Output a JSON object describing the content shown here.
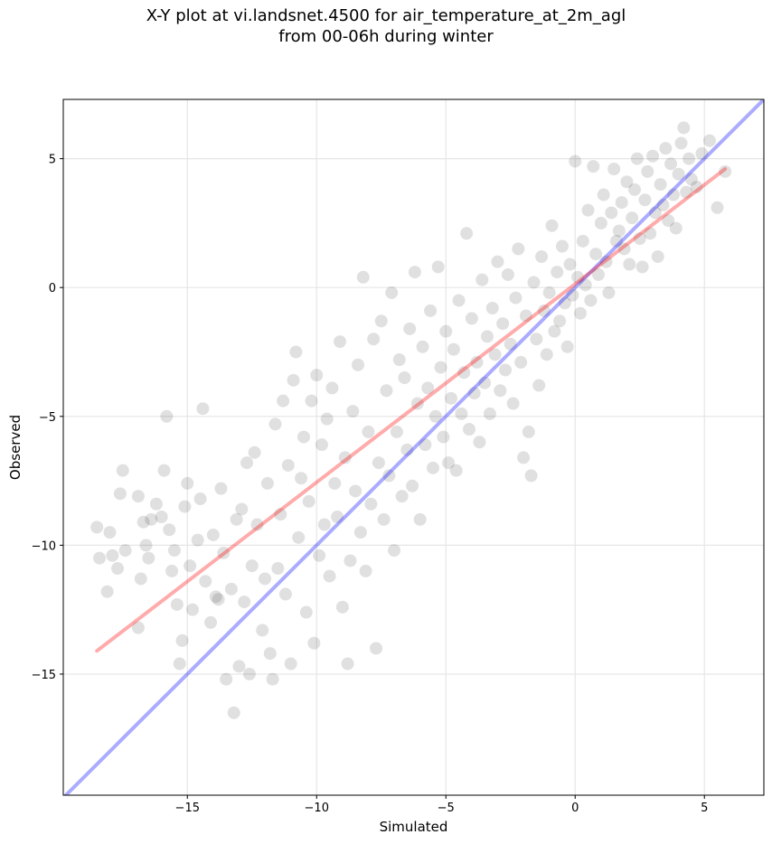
{
  "chart_data": {
    "type": "scatter",
    "title_lines": [
      "X-Y plot at vi.landsnet.4500 for air_temperature_at_2m_agl",
      "from 00-06h during winter"
    ],
    "xlabel": "Simulated",
    "ylabel": "Observed",
    "xlim": [
      -19.8,
      7.3
    ],
    "ylim": [
      -19.7,
      7.3
    ],
    "xticks": [
      -15,
      -10,
      -5,
      0,
      5
    ],
    "yticks": [
      -15,
      -10,
      -5,
      0,
      5
    ],
    "xtick_labels": [
      "−15",
      "−10",
      "−5",
      "0",
      "5"
    ],
    "ytick_labels": [
      "−15",
      "−10",
      "−5",
      "0",
      "5"
    ],
    "grid": true,
    "point_color": "#000000",
    "points": [
      [
        -18.5,
        -9.3
      ],
      [
        -18.4,
        -10.5
      ],
      [
        -18.1,
        -11.8
      ],
      [
        -18.0,
        -9.5
      ],
      [
        -17.9,
        -10.4
      ],
      [
        -17.7,
        -10.9
      ],
      [
        -17.6,
        -8.0
      ],
      [
        -17.5,
        -7.1
      ],
      [
        -17.4,
        -10.2
      ],
      [
        -16.9,
        -13.2
      ],
      [
        -16.9,
        -8.1
      ],
      [
        -16.8,
        -11.3
      ],
      [
        -16.7,
        -9.1
      ],
      [
        -16.6,
        -10.0
      ],
      [
        -16.5,
        -10.5
      ],
      [
        -16.4,
        -9.0
      ],
      [
        -16.2,
        -8.4
      ],
      [
        -16.0,
        -8.9
      ],
      [
        -15.9,
        -7.1
      ],
      [
        -15.8,
        -5.0
      ],
      [
        -15.7,
        -9.4
      ],
      [
        -15.6,
        -11.0
      ],
      [
        -15.5,
        -10.2
      ],
      [
        -15.4,
        -12.3
      ],
      [
        -15.3,
        -14.6
      ],
      [
        -15.2,
        -13.7
      ],
      [
        -15.1,
        -8.5
      ],
      [
        -15.0,
        -7.6
      ],
      [
        -14.9,
        -10.8
      ],
      [
        -14.8,
        -12.5
      ],
      [
        -14.6,
        -9.8
      ],
      [
        -14.5,
        -8.2
      ],
      [
        -14.4,
        -4.7
      ],
      [
        -14.3,
        -11.4
      ],
      [
        -14.1,
        -13.0
      ],
      [
        -14.0,
        -9.6
      ],
      [
        -13.9,
        -12.0
      ],
      [
        -13.8,
        -12.1
      ],
      [
        -13.7,
        -7.8
      ],
      [
        -13.6,
        -10.3
      ],
      [
        -13.5,
        -15.2
      ],
      [
        -13.3,
        -11.7
      ],
      [
        -13.2,
        -16.5
      ],
      [
        -13.1,
        -9.0
      ],
      [
        -13.0,
        -14.7
      ],
      [
        -12.9,
        -8.6
      ],
      [
        -12.8,
        -12.2
      ],
      [
        -12.7,
        -6.8
      ],
      [
        -12.6,
        -15.0
      ],
      [
        -12.5,
        -10.8
      ],
      [
        -12.4,
        -6.4
      ],
      [
        -12.3,
        -9.2
      ],
      [
        -12.1,
        -13.3
      ],
      [
        -12.0,
        -11.3
      ],
      [
        -11.9,
        -7.6
      ],
      [
        -11.8,
        -14.2
      ],
      [
        -11.7,
        -15.2
      ],
      [
        -11.6,
        -5.3
      ],
      [
        -11.5,
        -10.9
      ],
      [
        -11.4,
        -8.8
      ],
      [
        -11.3,
        -4.4
      ],
      [
        -11.2,
        -11.9
      ],
      [
        -11.1,
        -6.9
      ],
      [
        -11.0,
        -14.6
      ],
      [
        -10.9,
        -3.6
      ],
      [
        -10.8,
        -2.5
      ],
      [
        -10.7,
        -9.7
      ],
      [
        -10.6,
        -7.4
      ],
      [
        -10.5,
        -5.8
      ],
      [
        -10.4,
        -12.6
      ],
      [
        -10.3,
        -8.3
      ],
      [
        -10.2,
        -4.4
      ],
      [
        -10.1,
        -13.8
      ],
      [
        -10.0,
        -3.4
      ],
      [
        -9.9,
        -10.4
      ],
      [
        -9.8,
        -6.1
      ],
      [
        -9.7,
        -9.2
      ],
      [
        -9.6,
        -5.1
      ],
      [
        -9.5,
        -11.2
      ],
      [
        -9.4,
        -3.9
      ],
      [
        -9.3,
        -7.6
      ],
      [
        -9.2,
        -8.9
      ],
      [
        -9.1,
        -2.1
      ],
      [
        -9.0,
        -12.4
      ],
      [
        -8.9,
        -6.6
      ],
      [
        -8.8,
        -14.6
      ],
      [
        -8.7,
        -10.6
      ],
      [
        -8.6,
        -4.8
      ],
      [
        -8.5,
        -7.9
      ],
      [
        -8.4,
        -3.0
      ],
      [
        -8.3,
        -9.5
      ],
      [
        -8.2,
        0.4
      ],
      [
        -8.1,
        -11.0
      ],
      [
        -8.0,
        -5.6
      ],
      [
        -7.9,
        -8.4
      ],
      [
        -7.8,
        -2.0
      ],
      [
        -7.7,
        -14.0
      ],
      [
        -7.6,
        -6.8
      ],
      [
        -7.5,
        -1.3
      ],
      [
        -7.4,
        -9.0
      ],
      [
        -7.3,
        -4.0
      ],
      [
        -7.2,
        -7.3
      ],
      [
        -7.1,
        -0.2
      ],
      [
        -7.0,
        -10.2
      ],
      [
        -6.9,
        -5.6
      ],
      [
        -6.8,
        -2.8
      ],
      [
        -6.7,
        -8.1
      ],
      [
        -6.6,
        -3.5
      ],
      [
        -6.5,
        -6.3
      ],
      [
        -6.4,
        -1.6
      ],
      [
        -6.3,
        -7.7
      ],
      [
        -6.2,
        0.6
      ],
      [
        -6.1,
        -4.5
      ],
      [
        -6.0,
        -9.0
      ],
      [
        -5.9,
        -2.3
      ],
      [
        -5.8,
        -6.1
      ],
      [
        -5.7,
        -3.9
      ],
      [
        -5.6,
        -0.9
      ],
      [
        -5.5,
        -7.0
      ],
      [
        -5.4,
        -5.0
      ],
      [
        -5.3,
        0.8
      ],
      [
        -5.2,
        -3.1
      ],
      [
        -5.1,
        -5.8
      ],
      [
        -5.0,
        -1.7
      ],
      [
        -4.9,
        -6.8
      ],
      [
        -4.8,
        -4.3
      ],
      [
        -4.7,
        -2.4
      ],
      [
        -4.6,
        -7.1
      ],
      [
        -4.5,
        -0.5
      ],
      [
        -4.4,
        -4.9
      ],
      [
        -4.3,
        -3.3
      ],
      [
        -4.2,
        2.1
      ],
      [
        -4.1,
        -5.5
      ],
      [
        -4.0,
        -1.2
      ],
      [
        -3.9,
        -4.1
      ],
      [
        -3.8,
        -2.9
      ],
      [
        -3.7,
        -6.0
      ],
      [
        -3.6,
        0.3
      ],
      [
        -3.5,
        -3.7
      ],
      [
        -3.4,
        -1.9
      ],
      [
        -3.3,
        -4.9
      ],
      [
        -3.2,
        -0.8
      ],
      [
        -3.1,
        -2.6
      ],
      [
        -3.0,
        1.0
      ],
      [
        -2.9,
        -4.0
      ],
      [
        -2.8,
        -1.4
      ],
      [
        -2.7,
        -3.2
      ],
      [
        -2.6,
        0.5
      ],
      [
        -2.5,
        -2.2
      ],
      [
        -2.4,
        -4.5
      ],
      [
        -2.3,
        -0.4
      ],
      [
        -2.2,
        1.5
      ],
      [
        -2.1,
        -2.9
      ],
      [
        -2.0,
        -6.6
      ],
      [
        -1.9,
        -1.1
      ],
      [
        -1.8,
        -5.6
      ],
      [
        -1.7,
        -7.3
      ],
      [
        -1.6,
        0.2
      ],
      [
        -1.5,
        -2.0
      ],
      [
        -1.4,
        -3.8
      ],
      [
        -1.3,
        1.2
      ],
      [
        -1.2,
        -0.9
      ],
      [
        -1.1,
        -2.6
      ],
      [
        -1.0,
        -0.2
      ],
      [
        -0.9,
        2.4
      ],
      [
        -0.8,
        -1.7
      ],
      [
        -0.7,
        0.6
      ],
      [
        -0.6,
        -1.3
      ],
      [
        -0.5,
        1.6
      ],
      [
        -0.4,
        -0.6
      ],
      [
        -0.3,
        -2.3
      ],
      [
        -0.2,
        0.9
      ],
      [
        -0.1,
        -0.3
      ],
      [
        0.0,
        4.9
      ],
      [
        0.1,
        0.4
      ],
      [
        0.2,
        -1.0
      ],
      [
        0.3,
        1.8
      ],
      [
        0.4,
        0.1
      ],
      [
        0.5,
        3.0
      ],
      [
        0.6,
        -0.5
      ],
      [
        0.7,
        4.7
      ],
      [
        0.8,
        1.3
      ],
      [
        0.9,
        0.5
      ],
      [
        1.0,
        2.5
      ],
      [
        1.1,
        3.6
      ],
      [
        1.2,
        1.0
      ],
      [
        1.3,
        -0.2
      ],
      [
        1.4,
        2.9
      ],
      [
        1.5,
        4.6
      ],
      [
        1.6,
        1.8
      ],
      [
        1.7,
        2.2
      ],
      [
        1.8,
        3.3
      ],
      [
        1.9,
        1.5
      ],
      [
        2.0,
        4.1
      ],
      [
        2.1,
        0.9
      ],
      [
        2.2,
        2.7
      ],
      [
        2.3,
        3.8
      ],
      [
        2.4,
        5.0
      ],
      [
        2.5,
        1.9
      ],
      [
        2.6,
        0.8
      ],
      [
        2.7,
        3.4
      ],
      [
        2.8,
        4.5
      ],
      [
        2.9,
        2.1
      ],
      [
        3.0,
        5.1
      ],
      [
        3.1,
        2.9
      ],
      [
        3.2,
        1.2
      ],
      [
        3.3,
        4.0
      ],
      [
        3.4,
        3.2
      ],
      [
        3.5,
        5.4
      ],
      [
        3.6,
        2.6
      ],
      [
        3.7,
        4.8
      ],
      [
        3.8,
        3.6
      ],
      [
        3.9,
        2.3
      ],
      [
        4.0,
        4.4
      ],
      [
        4.1,
        5.6
      ],
      [
        4.2,
        6.2
      ],
      [
        4.3,
        3.7
      ],
      [
        4.4,
        5.0
      ],
      [
        4.5,
        4.2
      ],
      [
        4.7,
        3.9
      ],
      [
        4.9,
        5.2
      ],
      [
        5.2,
        5.7
      ],
      [
        5.5,
        3.1
      ],
      [
        5.8,
        4.5
      ]
    ],
    "lines": [
      {
        "color": "#0000ff",
        "x": [
          -19.8,
          7.3
        ],
        "y": [
          -19.8,
          7.3
        ]
      },
      {
        "color": "#ff0000",
        "x": [
          -18.5,
          5.8
        ],
        "y": [
          -14.1,
          4.6
        ]
      }
    ]
  }
}
